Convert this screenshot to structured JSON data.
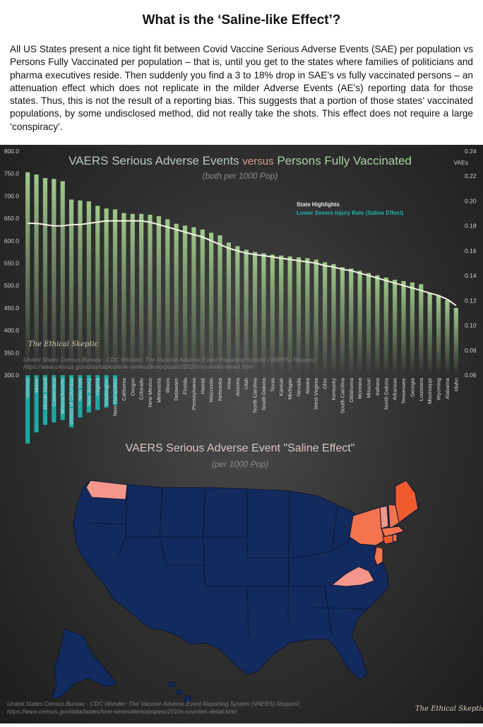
{
  "title": "What is the ‘Saline-like Effect’?",
  "paragraph": "All US States present a nice tight fit between Covid Vaccine Serious Adverse Events (SAE) per population vs Persons Fully Vaccinated per population – that is, until you get to the states where families of politicians and pharma executives reside. Then suddenly you find a 3 to 18% drop in SAE’s vs fully vaccinated persons – an attenuation effect which does not replicate in the milder Adverse Events (AE’s) reporting data for those states. Thus, this is not the result of a reporting bias. This suggests that a portion of those states’ vaccinated populations, by some undisclosed method, did not really take the shots. This effect does not require a large ‘conspiracy’.",
  "chart_data": [
    {
      "type": "bar",
      "title_parts": [
        "VAERS Serious Adverse Events ",
        "versus",
        " Persons Fully Vaccinated"
      ],
      "subtitle": "(both per 1000 Pop)",
      "y2label": "VAEs",
      "ylim": [
        300,
        800
      ],
      "y_ticks": [
        "800.0",
        "750.0",
        "700.0",
        "650.0",
        "600.0",
        "550.0",
        "500.0",
        "450.0",
        "400.0",
        "350.0",
        "300.0"
      ],
      "y2lim": [
        0.06,
        0.24
      ],
      "y2_ticks": [
        "0.24",
        "0.22",
        "0.20",
        "0.18",
        "0.16",
        "0.14",
        "0.12",
        "0.10",
        "0.08",
        "0.06"
      ],
      "legend": [
        "State Highlights",
        "Lower Severe Injury Rate (Saline Effect)"
      ],
      "colors": {
        "bar": "#9fc98a",
        "highlight": "#1fa7a4",
        "trend": "#f2f2e6"
      },
      "categories": [
        "Vermont",
        "Maine",
        "Rhode Island",
        "Connecticut",
        "Massachusetts",
        "District of Columbia",
        "New York",
        "New Jersey",
        "Virginia",
        "Washington",
        "New Hampshire",
        "California",
        "Oregon",
        "Colorado",
        "New Mexico",
        "Minnesota",
        "Illinois",
        "Delaware",
        "Florida",
        "Pennsylvania",
        "Hawaii",
        "Wisconsin",
        "Nebraska",
        "Iowa",
        "Arizona",
        "Utah",
        "North Carolina",
        "South Dakota",
        "Texas",
        "Kansas",
        "Michigan",
        "Nevada",
        "Alaska",
        "West Virginia",
        "Ohio",
        "Kentucky",
        "South Carolina",
        "Oklahoma",
        "Montana",
        "Missouri",
        "Indiana",
        "North Dakota",
        "Arkansas",
        "Tennessee",
        "Georgia",
        "Louisiana",
        "Mississippi",
        "Wyoming",
        "Alabama",
        "Idaho"
      ],
      "values": [
        753,
        748,
        740,
        738,
        733,
        692,
        690,
        688,
        678,
        672,
        670,
        662,
        660,
        660,
        658,
        655,
        648,
        638,
        634,
        630,
        625,
        618,
        612,
        596,
        588,
        580,
        575,
        572,
        569,
        567,
        565,
        563,
        561,
        558,
        552,
        548,
        541,
        538,
        533,
        528,
        523,
        518,
        513,
        510,
        507,
        503,
        483,
        478,
        468,
        450
      ],
      "highlighted": [
        "Vermont",
        "Maine",
        "Rhode Island",
        "Connecticut",
        "Massachusetts",
        "District of Columbia",
        "New York",
        "New Jersey",
        "Virginia",
        "Washington",
        "New Hampshire"
      ],
      "highlight_values": [
        0.055,
        0.046,
        0.04,
        0.038,
        0.036,
        0.042,
        0.034,
        0.03,
        0.028,
        0.026,
        0.024
      ],
      "trend_values": [
        0.182,
        0.182,
        0.181,
        0.18,
        0.18,
        0.181,
        0.181,
        0.182,
        0.183,
        0.184,
        0.184,
        0.184,
        0.184,
        0.184,
        0.183,
        0.181,
        0.179,
        0.177,
        0.175,
        0.173,
        0.171,
        0.168,
        0.165,
        0.162,
        0.16,
        0.158,
        0.157,
        0.156,
        0.155,
        0.154,
        0.153,
        0.152,
        0.151,
        0.15,
        0.148,
        0.147,
        0.145,
        0.144,
        0.142,
        0.14,
        0.138,
        0.136,
        0.134,
        0.132,
        0.13,
        0.128,
        0.126,
        0.124,
        0.121,
        0.116
      ],
      "source": [
        "United States Census Bureau - CDC Wonder: The Vaccine Adverse Event Reporting System (VAERS) Request;",
        "https://www.census.gov/data/tables/time-series/demo/popest/2010s-counties-detail.html"
      ],
      "brand": "The Ethical Skeptic"
    },
    {
      "type": "map",
      "title": "VAERS Serious Adverse Event \"Saline Effect\"",
      "subtitle": "(per 1000 Pop)",
      "colors": {
        "base": "#132a5e",
        "border": "#0a1636",
        "strong": "#f25b2e",
        "medium": "#f4744f",
        "light": "#f4978a"
      },
      "highlighted_states": {
        "strong": [
          "Maine",
          "Connecticut"
        ],
        "medium": [
          "New York",
          "New Hampshire",
          "Massachusetts",
          "Rhode Island",
          "New Jersey"
        ],
        "light": [
          "Washington",
          "Vermont",
          "Virginia"
        ]
      },
      "source": [
        "United States Census Bureau - CDC Wonder: The Vaccine Adverse Event Reporting System (VAERS) Request;",
        "https://www.census.gov/data/tables/time-series/demo/popest/2010s-counties-detail.html"
      ],
      "brand": "The Ethical Skeptic"
    }
  ]
}
